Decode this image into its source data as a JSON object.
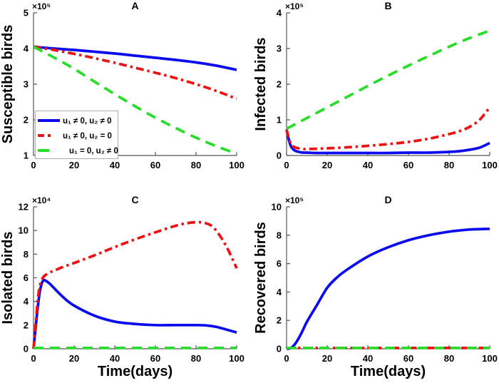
{
  "figure": {
    "background": "#ffffff"
  },
  "colors": {
    "blue": "#0b0bee",
    "red": "#ee1111",
    "green": "#27dd27",
    "axis": "#555555",
    "text": "#000000",
    "legend_border": "#aaaaaa",
    "legend_bg": "#ffffff"
  },
  "legend": {
    "entries": [
      {
        "label": "u₁ ≠ 0, u₂ ≠ 0",
        "color": "blue",
        "style": "solid"
      },
      {
        "label": "u₁ ≠ 0, u₂ = 0",
        "color": "red",
        "style": "dashdot"
      },
      {
        "label": "u₁ = 0, u₂ ≠ 0",
        "color": "green",
        "style": "dashed"
      }
    ]
  },
  "chart_data": [
    {
      "type": "line",
      "id": "A",
      "title": "A",
      "ylabel": "Susceptible birds",
      "xlabel": "",
      "scale_label": "×10⁵",
      "xlim": [
        0,
        100
      ],
      "ylim": [
        1,
        5
      ],
      "xticks": [
        0,
        20,
        40,
        60,
        80,
        100
      ],
      "yticks": [
        1,
        2,
        3,
        4,
        5
      ],
      "has_legend": true,
      "series": [
        {
          "name": "u₁ ≠ 0, u₂ ≠ 0",
          "color": "blue",
          "style": "solid",
          "x": [
            0,
            10,
            20,
            30,
            40,
            50,
            60,
            70,
            80,
            90,
            100
          ],
          "y": [
            4.05,
            4.0,
            3.96,
            3.91,
            3.86,
            3.8,
            3.74,
            3.68,
            3.61,
            3.52,
            3.4
          ]
        },
        {
          "name": "u₁ ≠ 0, u₂ = 0",
          "color": "red",
          "style": "dashdot",
          "x": [
            0,
            10,
            20,
            30,
            40,
            50,
            60,
            70,
            80,
            90,
            100
          ],
          "y": [
            4.05,
            3.96,
            3.85,
            3.73,
            3.6,
            3.46,
            3.32,
            3.17,
            3.0,
            2.81,
            2.59
          ]
        },
        {
          "name": "u₁ = 0, u₂ ≠ 0",
          "color": "green",
          "style": "dashed",
          "x": [
            0,
            10,
            20,
            30,
            40,
            50,
            60,
            70,
            80,
            90,
            100
          ],
          "y": [
            4.05,
            3.75,
            3.43,
            3.07,
            2.72,
            2.38,
            2.06,
            1.77,
            1.5,
            1.26,
            1.05
          ]
        }
      ]
    },
    {
      "type": "line",
      "id": "B",
      "title": "B",
      "ylabel": "Infected birds",
      "xlabel": "",
      "scale_label": "×10⁵",
      "xlim": [
        0,
        100
      ],
      "ylim": [
        0,
        4
      ],
      "xticks": [
        0,
        20,
        40,
        60,
        80,
        100
      ],
      "yticks": [
        0,
        1,
        2,
        3,
        4
      ],
      "has_legend": false,
      "series": [
        {
          "name": "u₁ ≠ 0, u₂ ≠ 0",
          "color": "blue",
          "style": "solid",
          "x": [
            0,
            1,
            2,
            3,
            4,
            6,
            8,
            10,
            15,
            20,
            30,
            40,
            50,
            60,
            70,
            80,
            85,
            90,
            95,
            100
          ],
          "y": [
            0.73,
            0.46,
            0.28,
            0.19,
            0.14,
            0.1,
            0.08,
            0.08,
            0.07,
            0.07,
            0.07,
            0.07,
            0.07,
            0.08,
            0.08,
            0.1,
            0.12,
            0.16,
            0.22,
            0.35
          ]
        },
        {
          "name": "u₁ ≠ 0, u₂ = 0",
          "color": "red",
          "style": "dashdot",
          "x": [
            0,
            1,
            2,
            3,
            4,
            6,
            8,
            10,
            15,
            20,
            30,
            40,
            50,
            60,
            70,
            80,
            85,
            90,
            95,
            100
          ],
          "y": [
            0.73,
            0.5,
            0.35,
            0.27,
            0.23,
            0.2,
            0.18,
            0.18,
            0.19,
            0.2,
            0.23,
            0.27,
            0.32,
            0.38,
            0.47,
            0.6,
            0.68,
            0.8,
            1.0,
            1.35
          ]
        },
        {
          "name": "u₁ = 0, u₂ ≠ 0",
          "color": "green",
          "style": "dashed",
          "x": [
            0,
            10,
            20,
            30,
            40,
            50,
            60,
            70,
            80,
            90,
            100
          ],
          "y": [
            0.75,
            1.05,
            1.35,
            1.65,
            1.95,
            2.24,
            2.52,
            2.79,
            3.05,
            3.29,
            3.5
          ]
        }
      ]
    },
    {
      "type": "line",
      "id": "C",
      "title": "C",
      "ylabel": "Isolated birds",
      "xlabel": "Time(days)",
      "scale_label": "×10⁴",
      "xlim": [
        0,
        100
      ],
      "ylim": [
        0,
        12
      ],
      "xticks": [
        0,
        20,
        40,
        60,
        80,
        100
      ],
      "yticks": [
        0,
        2,
        4,
        6,
        8,
        10,
        12
      ],
      "has_legend": false,
      "series": [
        {
          "name": "u₁ ≠ 0, u₂ ≠ 0",
          "color": "blue",
          "style": "solid",
          "x": [
            0,
            1,
            2,
            3,
            4,
            5,
            6,
            8,
            10,
            15,
            20,
            30,
            40,
            50,
            60,
            70,
            80,
            85,
            90,
            95,
            100
          ],
          "y": [
            0,
            1.7,
            3.4,
            4.7,
            5.5,
            5.8,
            5.75,
            5.5,
            5.15,
            4.3,
            3.65,
            2.8,
            2.3,
            2.1,
            2.0,
            2.0,
            2.0,
            1.97,
            1.85,
            1.62,
            1.38
          ]
        },
        {
          "name": "u₁ ≠ 0, u₂ = 0",
          "color": "red",
          "style": "dashdot",
          "x": [
            0,
            1,
            2,
            3,
            4,
            5,
            6,
            8,
            10,
            15,
            20,
            30,
            40,
            50,
            60,
            70,
            75,
            80,
            84,
            88,
            92,
            96,
            100
          ],
          "y": [
            0,
            2.0,
            4.0,
            5.2,
            5.8,
            6.1,
            6.25,
            6.45,
            6.6,
            6.95,
            7.25,
            7.9,
            8.6,
            9.25,
            9.85,
            10.4,
            10.6,
            10.7,
            10.65,
            10.35,
            9.5,
            8.3,
            6.8
          ]
        },
        {
          "name": "u₁ = 0, u₂ ≠ 0",
          "color": "green",
          "style": "dashed",
          "x": [
            0,
            100
          ],
          "y": [
            0.07,
            0.07
          ]
        }
      ]
    },
    {
      "type": "line",
      "id": "D",
      "title": "D",
      "ylabel": "Recovered birds",
      "xlabel": "Time(days)",
      "scale_label": "×10⁵",
      "xlim": [
        0,
        100
      ],
      "ylim": [
        0,
        10
      ],
      "xticks": [
        0,
        20,
        40,
        60,
        80,
        100
      ],
      "yticks": [
        0,
        2,
        4,
        6,
        8,
        10
      ],
      "has_legend": false,
      "series": [
        {
          "name": "u₁ ≠ 0, u₂ ≠ 0",
          "color": "blue",
          "style": "solid",
          "x": [
            0,
            2,
            4,
            6,
            8,
            10,
            15,
            20,
            25,
            30,
            40,
            50,
            60,
            70,
            80,
            90,
            100
          ],
          "y": [
            0,
            0.05,
            0.3,
            0.75,
            1.3,
            1.9,
            3.1,
            4.3,
            5.05,
            5.6,
            6.5,
            7.15,
            7.65,
            8.0,
            8.25,
            8.4,
            8.45
          ]
        },
        {
          "name": "u₁ ≠ 0, u₂ = 0",
          "color": "red",
          "style": "dashdot",
          "x": [
            0,
            100
          ],
          "y": [
            0.06,
            0.06
          ]
        },
        {
          "name": "u₁ = 0, u₂ ≠ 0",
          "color": "green",
          "style": "dashed",
          "x": [
            0,
            100
          ],
          "y": [
            0.06,
            0.06
          ]
        }
      ]
    }
  ]
}
